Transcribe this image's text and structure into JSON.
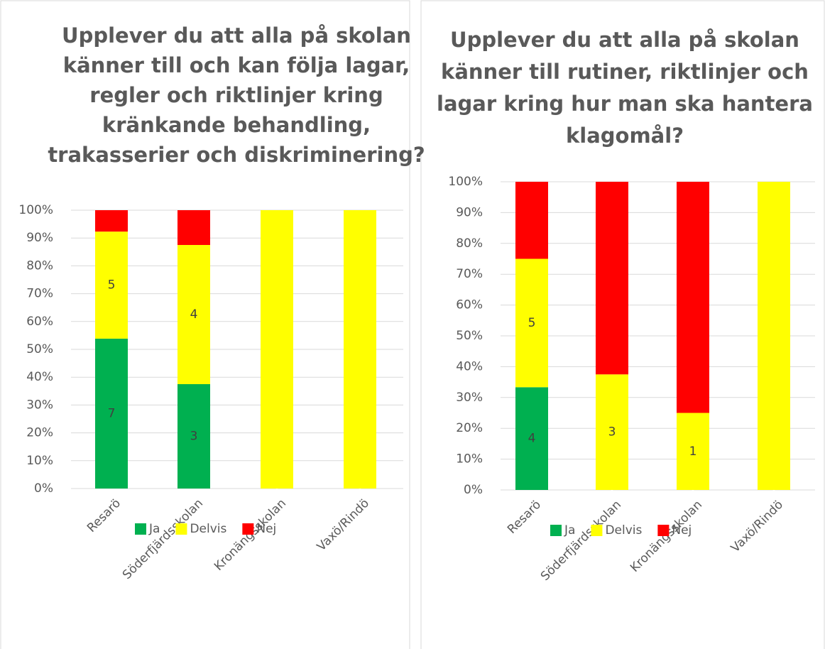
{
  "chart_data": [
    {
      "type": "bar",
      "stack": "percent",
      "title": [
        "Upplever du att alla på skolan",
        "känner till och kan följa lagar,",
        "regler och riktlinjer kring",
        "kränkande behandling,",
        "trakasserier och diskriminering?"
      ],
      "categories": [
        "Resarö",
        "Söderfjärdsskolan",
        "Kronängsskolan",
        "Vaxö/Rindö"
      ],
      "series": [
        {
          "name": "Ja",
          "color": "#00b050",
          "values": [
            7,
            3,
            0,
            0
          ],
          "value_labels": [
            "7",
            "3",
            "0",
            "0"
          ]
        },
        {
          "name": "Delvis",
          "color": "#ffff00",
          "values": [
            5,
            4,
            1,
            1
          ],
          "value_labels": [
            "5",
            "4",
            null,
            null
          ]
        },
        {
          "name": "Nej",
          "color": "#ff0000",
          "values": [
            1,
            1,
            0,
            0
          ],
          "value_labels": [
            null,
            null,
            null,
            null
          ]
        }
      ],
      "ylim": [
        0,
        100
      ],
      "yticks": [
        {
          "value": 0,
          "label": "0%"
        },
        {
          "value": 10,
          "label": "10%"
        },
        {
          "value": 20,
          "label": "20%"
        },
        {
          "value": 30,
          "label": "30%"
        },
        {
          "value": 40,
          "label": "40%"
        },
        {
          "value": 50,
          "label": "50%"
        },
        {
          "value": 60,
          "label": "60%"
        },
        {
          "value": 70,
          "label": "70%"
        },
        {
          "value": 80,
          "label": "80%"
        },
        {
          "value": 90,
          "label": "90%"
        },
        {
          "value": 100,
          "label": "100%"
        }
      ],
      "grid": true,
      "legend": "bottom"
    },
    {
      "type": "bar",
      "stack": "percent",
      "title": [
        "Upplever du att alla på skolan",
        "känner till rutiner, riktlinjer och",
        "lagar kring hur man ska hantera",
        "klagomål?"
      ],
      "categories": [
        "Resarö",
        "Söderfjärdsskolan",
        "Kronängsskolan",
        "Vaxö/Rindö"
      ],
      "series": [
        {
          "name": "Ja",
          "color": "#00b050",
          "values": [
            4,
            0,
            0,
            0
          ],
          "value_labels": [
            "4",
            "0",
            "0",
            "0"
          ]
        },
        {
          "name": "Delvis",
          "color": "#ffff00",
          "values": [
            5,
            3,
            1,
            1
          ],
          "value_labels": [
            "5",
            "3",
            "1",
            null
          ]
        },
        {
          "name": "Nej",
          "color": "#ff0000",
          "values": [
            3,
            5,
            3,
            0
          ],
          "value_labels": [
            null,
            null,
            null,
            null
          ]
        }
      ],
      "ylim": [
        0,
        100
      ],
      "yticks": [
        {
          "value": 0,
          "label": "0%"
        },
        {
          "value": 10,
          "label": "10%"
        },
        {
          "value": 20,
          "label": "20%"
        },
        {
          "value": 30,
          "label": "30%"
        },
        {
          "value": 40,
          "label": "40%"
        },
        {
          "value": 50,
          "label": "50%"
        },
        {
          "value": 60,
          "label": "60%"
        },
        {
          "value": 70,
          "label": "70%"
        },
        {
          "value": 80,
          "label": "80%"
        },
        {
          "value": 90,
          "label": "90%"
        },
        {
          "value": 100,
          "label": "100%"
        }
      ],
      "grid": true,
      "legend": "bottom"
    }
  ]
}
